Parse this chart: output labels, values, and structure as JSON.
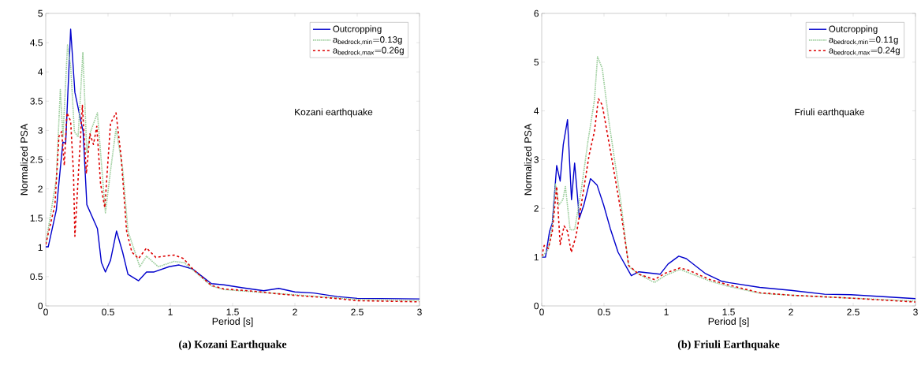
{
  "chart_data": [
    {
      "type": "line",
      "title": "(a) Kozani Earthquake",
      "xlabel": "Period [s]",
      "ylabel": "Normalized PSA",
      "annotations": [
        "Kozani earthquake"
      ],
      "xlim": [
        0,
        3
      ],
      "ylim": [
        0,
        5
      ],
      "xticks": [
        0,
        0.5,
        1,
        1.5,
        2,
        2.5,
        3
      ],
      "yticks": [
        0,
        0.5,
        1,
        1.5,
        2,
        2.5,
        3,
        3.5,
        4,
        4.5,
        5
      ],
      "legend": "top right",
      "grid": false,
      "series": [
        {
          "name": "Outcropping",
          "color": "#0000cc",
          "line_style": "solid",
          "x": [
            0,
            0.02,
            0.085,
            0.117,
            0.138,
            0.16,
            0.2,
            0.234,
            0.3,
            0.33,
            0.415,
            0.447,
            0.479,
            0.52,
            0.568,
            0.617,
            0.66,
            0.745,
            0.809,
            0.87,
            0.99,
            1.07,
            1.18,
            1.245,
            1.33,
            1.43,
            1.58,
            1.75,
            1.87,
            2.0,
            2.15,
            2.34,
            2.5,
            3.0
          ],
          "values": [
            1.01,
            1.01,
            1.64,
            2.35,
            2.8,
            2.78,
            4.73,
            3.65,
            2.98,
            1.73,
            1.32,
            0.74,
            0.58,
            0.78,
            1.28,
            0.92,
            0.54,
            0.43,
            0.58,
            0.58,
            0.67,
            0.7,
            0.63,
            0.52,
            0.38,
            0.36,
            0.31,
            0.26,
            0.3,
            0.24,
            0.22,
            0.16,
            0.13,
            0.12
          ]
        },
        {
          "name": "\\mathrm{a}_{\\mathrm{bedrock,min}}\\mathrm{{=}0.13g}",
          "color": "#99cc99",
          "line_style": "dotted",
          "x": [
            0,
            0.085,
            0.117,
            0.138,
            0.175,
            0.2,
            0.23,
            0.26,
            0.298,
            0.33,
            0.36,
            0.415,
            0.447,
            0.479,
            0.52,
            0.564,
            0.617,
            0.66,
            0.755,
            0.809,
            0.904,
            1.03,
            1.11,
            1.2,
            1.33,
            1.43,
            1.68,
            2.0,
            2.5,
            3.0
          ],
          "values": [
            1.05,
            2.17,
            3.7,
            2.89,
            4.46,
            4.1,
            2.98,
            2.89,
            4.33,
            2.62,
            2.98,
            3.3,
            2.44,
            1.59,
            2.31,
            3.03,
            2.35,
            1.28,
            0.67,
            0.85,
            0.67,
            0.76,
            0.74,
            0.58,
            0.34,
            0.28,
            0.24,
            0.19,
            0.11,
            0.09
          ]
        },
        {
          "name": "\\mathrm{a}_{\\mathrm{bedrock,max}}\\mathrm{{=}0.26g}",
          "color": "#dd0000",
          "line_style": "dashed",
          "x": [
            0,
            0.074,
            0.106,
            0.128,
            0.149,
            0.17,
            0.2,
            0.223,
            0.234,
            0.266,
            0.294,
            0.326,
            0.355,
            0.383,
            0.41,
            0.44,
            0.474,
            0.52,
            0.564,
            0.606,
            0.649,
            0.691,
            0.745,
            0.809,
            0.883,
            0.947,
            1.03,
            1.106,
            1.18,
            1.33,
            1.43,
            1.68,
            1.85,
            2.0,
            2.32,
            2.5,
            3.0
          ],
          "values": [
            1.05,
            1.73,
            2.9,
            2.98,
            2.4,
            3.3,
            3.16,
            2.26,
            1.19,
            2.4,
            3.43,
            2.26,
            2.94,
            2.76,
            3.07,
            2.09,
            1.68,
            3.12,
            3.3,
            2.53,
            1.28,
            0.92,
            0.81,
            0.99,
            0.83,
            0.85,
            0.87,
            0.81,
            0.63,
            0.35,
            0.29,
            0.25,
            0.21,
            0.18,
            0.13,
            0.09,
            0.07
          ]
        }
      ]
    },
    {
      "type": "line",
      "title": "(b) Friuli Earthquake",
      "xlabel": "Period [s]",
      "ylabel": "Normalized PSA",
      "annotations": [
        "Friuli earthquake"
      ],
      "xlim": [
        0,
        3
      ],
      "ylim": [
        0,
        6
      ],
      "xticks": [
        0,
        0.5,
        1,
        1.5,
        2,
        2.5,
        3
      ],
      "yticks": [
        0,
        1,
        2,
        3,
        4,
        5,
        6
      ],
      "legend": "top right",
      "grid": false,
      "series": [
        {
          "name": "Outcropping",
          "color": "#0000cc",
          "line_style": "solid",
          "x": [
            0,
            0.03,
            0.063,
            0.085,
            0.116,
            0.12,
            0.148,
            0.173,
            0.207,
            0.239,
            0.264,
            0.302,
            0.338,
            0.391,
            0.444,
            0.497,
            0.55,
            0.613,
            0.719,
            0.78,
            0.95,
            1.014,
            1.1,
            1.16,
            1.31,
            1.44,
            1.5,
            1.75,
            2.0,
            2.27,
            2.48,
            3.0
          ],
          "values": [
            1.0,
            1.0,
            1.53,
            1.7,
            2.74,
            2.88,
            2.56,
            3.31,
            3.82,
            2.18,
            2.93,
            1.8,
            2.07,
            2.61,
            2.48,
            2.07,
            1.59,
            1.1,
            0.62,
            0.7,
            0.65,
            0.86,
            1.02,
            0.97,
            0.67,
            0.51,
            0.48,
            0.38,
            0.32,
            0.24,
            0.23,
            0.15
          ]
        },
        {
          "name": "\\mathrm{a}_{\\mathrm{bedrock,min}}\\mathrm{{=}0.11g}",
          "color": "#99cc99",
          "line_style": "dotted",
          "x": [
            0,
            0.053,
            0.085,
            0.11,
            0.137,
            0.17,
            0.19,
            0.228,
            0.264,
            0.317,
            0.37,
            0.423,
            0.448,
            0.486,
            0.539,
            0.634,
            0.698,
            0.78,
            0.905,
            0.99,
            1.11,
            1.35,
            1.5,
            1.75,
            2.0,
            2.48,
            3.0
          ],
          "values": [
            1.0,
            1.16,
            1.64,
            2.5,
            2.07,
            2.18,
            2.45,
            1.56,
            1.56,
            2.37,
            3.36,
            4.22,
            5.11,
            4.87,
            3.79,
            2.15,
            0.81,
            0.65,
            0.48,
            0.62,
            0.75,
            0.51,
            0.4,
            0.26,
            0.22,
            0.16,
            0.1
          ]
        },
        {
          "name": "\\mathrm{a}_{\\mathrm{bedrock,max}}\\mathrm{{=}0.24g}",
          "color": "#dd0000",
          "line_style": "dashed",
          "x": [
            0,
            0.02,
            0.053,
            0.085,
            0.12,
            0.148,
            0.18,
            0.207,
            0.237,
            0.275,
            0.317,
            0.38,
            0.423,
            0.455,
            0.486,
            0.55,
            0.634,
            0.698,
            0.78,
            0.905,
            0.99,
            1.11,
            1.18,
            1.35,
            1.5,
            1.75,
            2.0,
            2.48,
            3.0
          ],
          "values": [
            1.02,
            1.24,
            1.18,
            1.53,
            2.45,
            1.26,
            1.64,
            1.53,
            1.1,
            1.43,
            2.07,
            3.09,
            3.58,
            4.25,
            4.12,
            3.2,
            1.96,
            0.83,
            0.65,
            0.54,
            0.67,
            0.78,
            0.73,
            0.54,
            0.43,
            0.27,
            0.22,
            0.16,
            0.08
          ]
        }
      ]
    }
  ]
}
